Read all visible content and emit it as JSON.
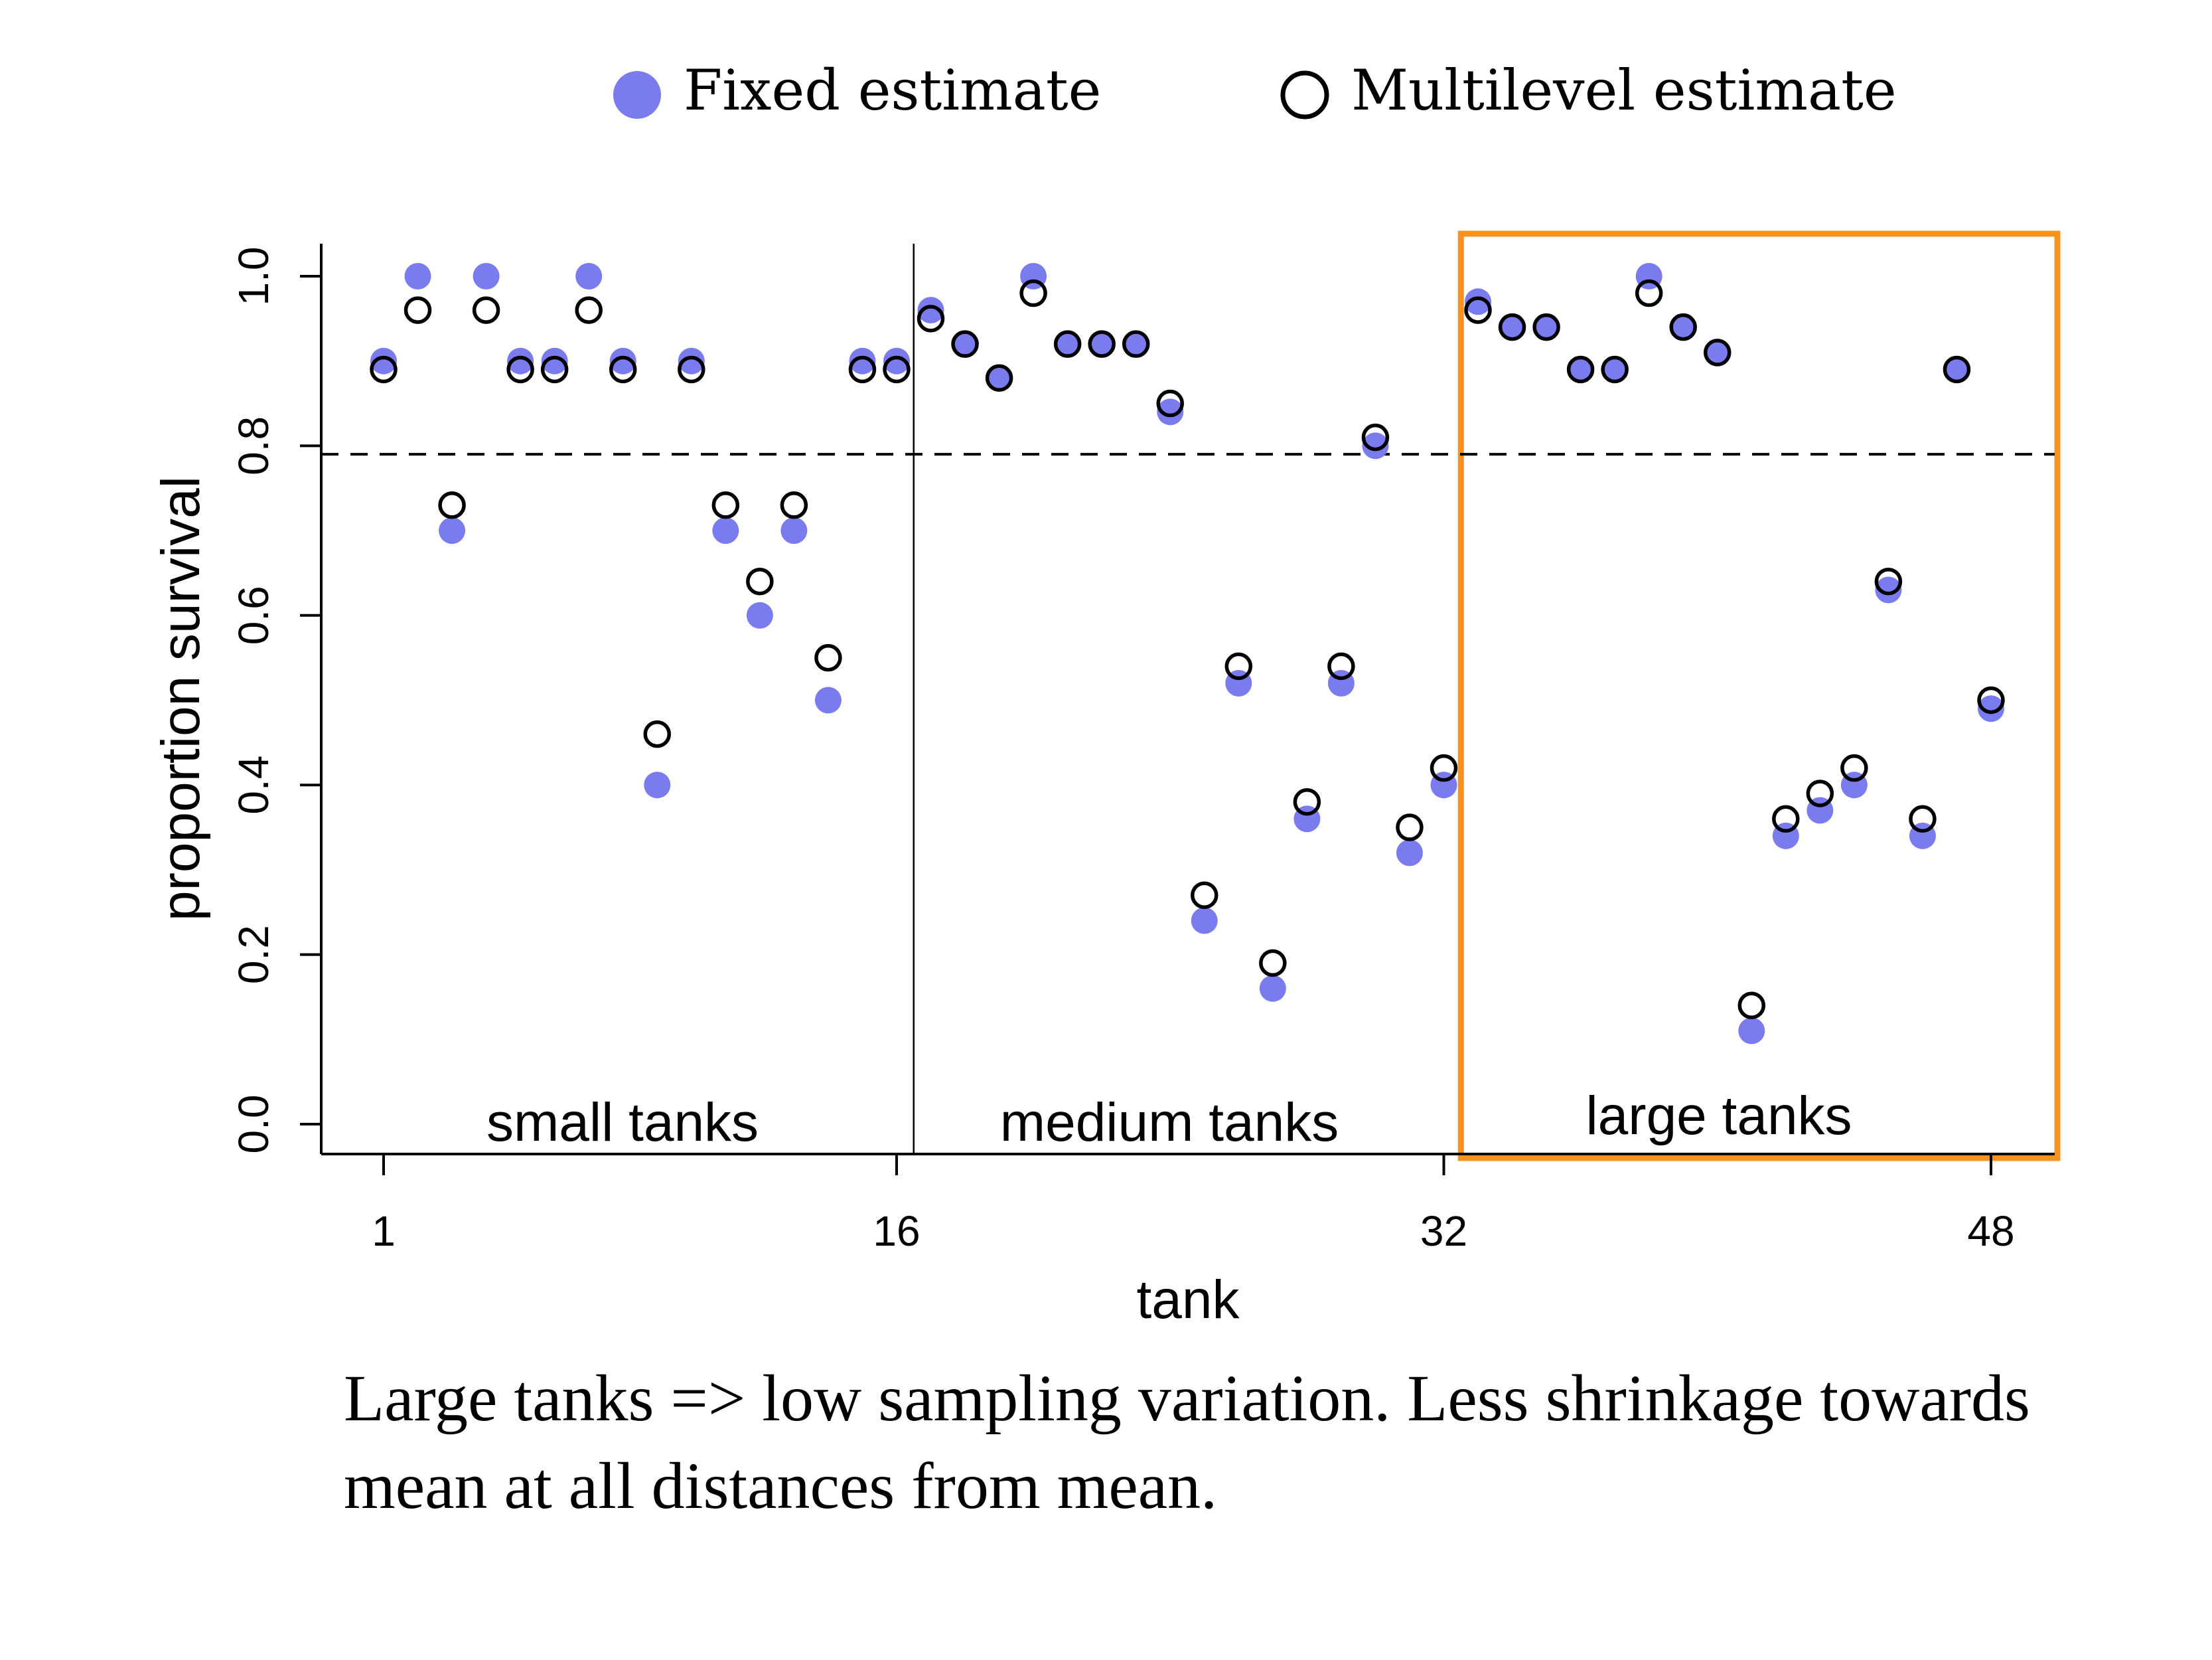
{
  "chart_data": {
    "type": "scatter",
    "xlabel": "tank",
    "ylabel": "proportion survival",
    "xlim": [
      0,
      50
    ],
    "ylim": [
      0,
      1
    ],
    "x_ticks": [
      1,
      16,
      32,
      48
    ],
    "y_ticks": [
      "0.0",
      "0.2",
      "0.4",
      "0.6",
      "0.8",
      "1.0"
    ],
    "grid": false,
    "legend_position": "top-center",
    "reference_line": {
      "y": 0.79,
      "style": "dashed"
    },
    "group_divider_after_tank": 16,
    "group_labels": [
      "small tanks",
      "medium tanks",
      "large tanks"
    ],
    "highlight_box": {
      "x_range": [
        32.5,
        50
      ],
      "label": "large tanks",
      "color": "#F5931E"
    },
    "series": [
      {
        "name": "Fixed estimate",
        "marker": "filled-circle",
        "color": "#7B7BF0",
        "x": [
          1,
          2,
          3,
          4,
          5,
          6,
          7,
          8,
          9,
          10,
          11,
          12,
          13,
          14,
          15,
          16,
          17,
          18,
          19,
          20,
          21,
          22,
          23,
          24,
          25,
          26,
          27,
          28,
          29,
          30,
          31,
          32,
          33,
          34,
          35,
          36,
          37,
          38,
          39,
          40,
          41,
          42,
          43,
          44,
          45,
          46,
          47,
          48
        ],
        "values": [
          0.9,
          1.0,
          0.7,
          1.0,
          0.9,
          0.9,
          1.0,
          0.9,
          0.4,
          0.9,
          0.7,
          0.6,
          0.7,
          0.5,
          0.9,
          0.9,
          0.96,
          0.92,
          0.88,
          1.0,
          0.92,
          0.92,
          0.92,
          0.84,
          0.24,
          0.52,
          0.16,
          0.36,
          0.52,
          0.8,
          0.32,
          0.4,
          0.97,
          0.94,
          0.94,
          0.89,
          0.89,
          1.0,
          0.94,
          0.91,
          0.11,
          0.34,
          0.37,
          0.4,
          0.63,
          0.34,
          0.89,
          0.49
        ]
      },
      {
        "name": "Multilevel estimate",
        "marker": "open-circle",
        "color": "#000000",
        "x": [
          1,
          2,
          3,
          4,
          5,
          6,
          7,
          8,
          9,
          10,
          11,
          12,
          13,
          14,
          15,
          16,
          17,
          18,
          19,
          20,
          21,
          22,
          23,
          24,
          25,
          26,
          27,
          28,
          29,
          30,
          31,
          32,
          33,
          34,
          35,
          36,
          37,
          38,
          39,
          40,
          41,
          42,
          43,
          44,
          45,
          46,
          47,
          48
        ],
        "values": [
          0.89,
          0.96,
          0.73,
          0.96,
          0.89,
          0.89,
          0.96,
          0.89,
          0.46,
          0.89,
          0.73,
          0.64,
          0.73,
          0.55,
          0.89,
          0.89,
          0.95,
          0.92,
          0.88,
          0.98,
          0.92,
          0.92,
          0.92,
          0.85,
          0.27,
          0.54,
          0.19,
          0.38,
          0.54,
          0.81,
          0.35,
          0.42,
          0.96,
          0.94,
          0.94,
          0.89,
          0.89,
          0.98,
          0.94,
          0.91,
          0.14,
          0.36,
          0.39,
          0.42,
          0.64,
          0.36,
          0.89,
          0.5
        ]
      }
    ]
  },
  "caption": "Large tanks => low sampling variation. Less shrinkage towards mean at all distances from mean."
}
